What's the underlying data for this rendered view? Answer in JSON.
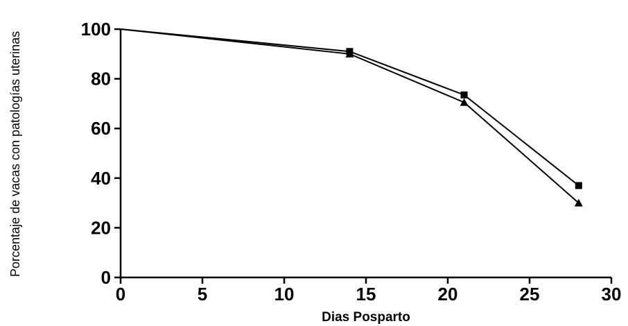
{
  "chart_data": {
    "type": "line",
    "title": "",
    "xlabel": "Dias Posparto",
    "ylabel": "Porcentaje de vacas con patologías uterinas",
    "xlim": [
      0,
      30
    ],
    "ylim": [
      0,
      100
    ],
    "xticks": [
      0,
      5,
      10,
      15,
      20,
      25,
      30
    ],
    "yticks": [
      0,
      20,
      40,
      60,
      80,
      100
    ],
    "grid": false,
    "legend": "none",
    "series": [
      {
        "marker": "square",
        "color": "#000000",
        "x": [
          0,
          14,
          21,
          28
        ],
        "y": [
          100,
          91,
          73.5,
          37
        ]
      },
      {
        "marker": "triangle",
        "color": "#000000",
        "x": [
          0,
          14,
          21,
          28
        ],
        "y": [
          100,
          90,
          70.5,
          30
        ]
      }
    ]
  }
}
